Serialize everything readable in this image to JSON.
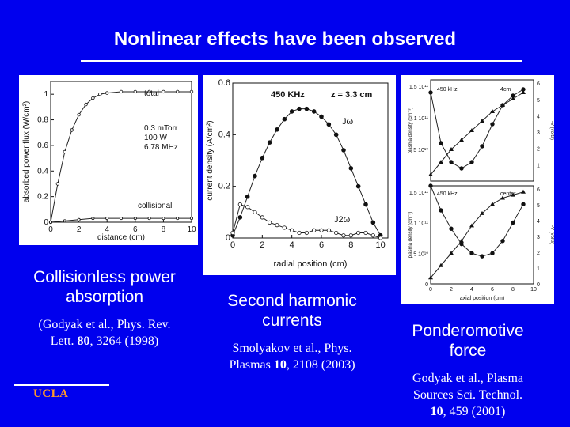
{
  "slide": {
    "title": "Nonlinear effects have been observed",
    "footer_logo": "UCLA"
  },
  "panels": {
    "left": {
      "caption": "Collisionless power absorption",
      "reference": "(Godyak et al., Phys. Rev. Lett. 80, 3264 (1998)",
      "ref_parts": [
        "(Godyak et al., Phys. Rev.",
        "Lett. ",
        "80",
        ", 3264 (1998)"
      ]
    },
    "middle": {
      "caption": "Second harmonic currents",
      "reference": "Smolyakov et al., Phys. Plasmas 10, 2108 (2003)",
      "ref_parts": [
        "Smolyakov et al., Phys.",
        "Plasmas ",
        "10",
        ", 2108 (2003)"
      ]
    },
    "right": {
      "caption": "Ponderomotive force",
      "reference": "Godyak et al., Plasma Sources Sci. Technol. 10, 459 (2001)",
      "ref_parts": [
        "Godyak et al., Plasma",
        "Sources Sci. Technol.",
        "10",
        ", 459 (2001)"
      ]
    }
  },
  "chart_data": [
    {
      "type": "line",
      "xlabel": "distance (cm)",
      "ylabel": "absorbed power flux (W/cm²)",
      "xticks": [
        "0",
        "2",
        "4",
        "6",
        "8",
        "10"
      ],
      "yticks": [
        "0",
        "0.2",
        "0.4",
        "0.6",
        "0.8",
        "1"
      ],
      "xlim": [
        0,
        10
      ],
      "ylim": [
        0,
        1.1
      ],
      "annotations": [
        "total",
        "collisional",
        "0.3 mTorr",
        "100 W",
        "6.78 MHz"
      ],
      "series": [
        {
          "name": "total",
          "x": [
            0,
            0.5,
            1,
            1.5,
            2,
            2.5,
            3,
            3.5,
            4,
            5,
            6,
            7,
            8,
            9,
            10
          ],
          "y": [
            0,
            0.3,
            0.55,
            0.72,
            0.84,
            0.92,
            0.97,
            1.0,
            1.01,
            1.02,
            1.02,
            1.02,
            1.02,
            1.02,
            1.02
          ]
        },
        {
          "name": "collisional",
          "x": [
            0,
            1,
            2,
            3,
            4,
            5,
            6,
            7,
            8,
            9,
            10
          ],
          "y": [
            0,
            0.01,
            0.02,
            0.03,
            0.03,
            0.03,
            0.03,
            0.03,
            0.03,
            0.03,
            0.03
          ]
        }
      ]
    },
    {
      "type": "line",
      "xlabel": "radial position (cm)",
      "ylabel": "current density (A/cm²)",
      "xticks": [
        "0",
        "2",
        "4",
        "6",
        "8",
        "10"
      ],
      "yticks": [
        "0",
        "0.2",
        "0.4",
        "0.6"
      ],
      "xlim": [
        0,
        10.5
      ],
      "ylim": [
        0,
        0.6
      ],
      "annotations": [
        "450 KHz",
        "z = 3.3 cm",
        "Jω",
        "J2ω"
      ],
      "series": [
        {
          "name": "Jω",
          "x": [
            0,
            0.5,
            1,
            1.5,
            2,
            2.5,
            3,
            3.5,
            4,
            4.5,
            5,
            5.5,
            6,
            6.5,
            7,
            7.5,
            8,
            8.5,
            9,
            9.5,
            10
          ],
          "y": [
            0.01,
            0.08,
            0.16,
            0.24,
            0.31,
            0.37,
            0.42,
            0.46,
            0.49,
            0.5,
            0.5,
            0.49,
            0.47,
            0.44,
            0.4,
            0.34,
            0.27,
            0.2,
            0.13,
            0.06,
            0.01
          ]
        },
        {
          "name": "J2ω",
          "x": [
            0,
            0.5,
            1,
            1.5,
            2,
            2.5,
            3,
            3.5,
            4,
            4.5,
            5,
            5.5,
            6,
            6.5,
            7,
            7.5,
            8,
            8.5,
            9,
            9.5,
            10
          ],
          "y": [
            0.02,
            0.13,
            0.12,
            0.1,
            0.08,
            0.06,
            0.05,
            0.04,
            0.03,
            0.02,
            0.02,
            0.03,
            0.03,
            0.03,
            0.02,
            0.01,
            0.01,
            0.02,
            0.02,
            0.01,
            0.0
          ]
        }
      ]
    },
    {
      "type": "line",
      "xlabel": "axial position (cm)",
      "ylabel_left": "plasma density (cm⁻³)",
      "ylabel_right": "-V (volts)",
      "xticks": [
        "0",
        "2",
        "4",
        "6",
        "8",
        "10"
      ],
      "annotations": [
        "450 kHz",
        "4cm",
        "center"
      ],
      "top": {
        "yticks_left": [
          "5 10¹⁰",
          "1 10¹¹",
          "1.5 10¹¹"
        ],
        "yticks_right": [
          "1",
          "2",
          "3",
          "4",
          "5",
          "6"
        ],
        "series": [
          {
            "name": "density",
            "x": [
              0,
              1,
              2,
              3,
              4,
              5,
              6,
              7,
              8,
              9
            ],
            "y": [
              1.4,
              0.6,
              0.3,
              0.2,
              0.3,
              0.55,
              0.9,
              1.2,
              1.35,
              1.45
            ]
          },
          {
            "name": "-V",
            "x": [
              0,
              1,
              2,
              3,
              4,
              5,
              6,
              7,
              8,
              9
            ],
            "y": [
              0.1,
              0.3,
              0.5,
              0.65,
              0.8,
              0.95,
              1.1,
              1.2,
              1.3,
              1.4
            ]
          }
        ]
      },
      "bottom": {
        "yticks_left": [
          "0",
          "5 10¹⁰",
          "1 10¹¹",
          "1.5 10¹¹"
        ],
        "yticks_right": [
          "0",
          "1",
          "2",
          "3",
          "4",
          "5",
          "6"
        ],
        "series": [
          {
            "name": "density",
            "x": [
              0,
              1,
              2,
              3,
              4,
              5,
              6,
              7,
              8,
              9
            ],
            "y": [
              1.6,
              1.2,
              0.9,
              0.65,
              0.5,
              0.45,
              0.5,
              0.7,
              1.0,
              1.3
            ]
          },
          {
            "name": "-V",
            "x": [
              0,
              1,
              2,
              3,
              4,
              5,
              6,
              7,
              8,
              9
            ],
            "y": [
              0.1,
              0.3,
              0.5,
              0.7,
              0.95,
              1.15,
              1.3,
              1.4,
              1.45,
              1.5
            ]
          }
        ]
      }
    }
  ]
}
